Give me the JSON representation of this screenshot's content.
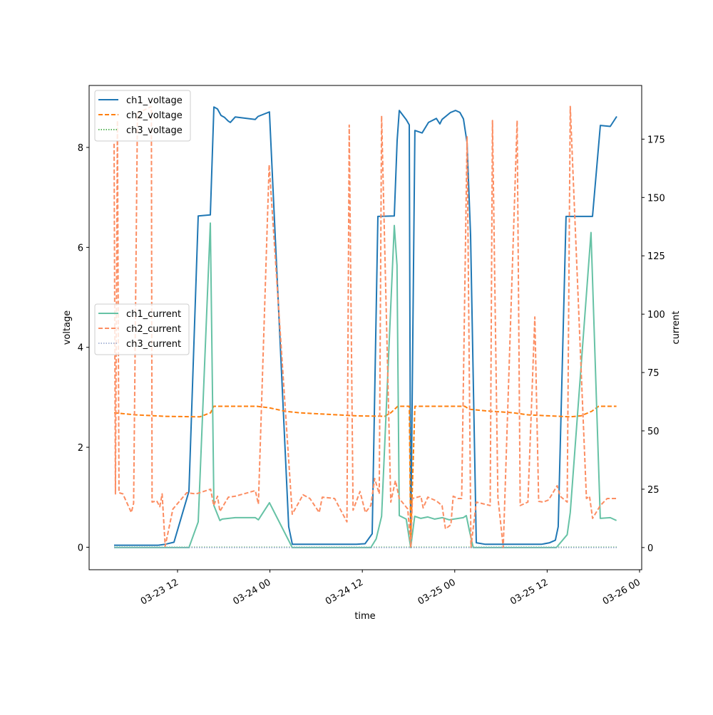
{
  "chart_data": {
    "type": "line",
    "xlabel": "time",
    "ylabel_left": "voltage",
    "ylabel_right": "current",
    "x_units": "hours since 03-23 00:00",
    "xlim": [
      0.52,
      72.28
    ],
    "ylim_left": [
      -0.45,
      9.24
    ],
    "ylim_right": [
      -9.5,
      198
    ],
    "x_ticks": [
      {
        "v": 12,
        "label": "03-23 12"
      },
      {
        "v": 24,
        "label": "03-24 00"
      },
      {
        "v": 36,
        "label": "03-24 12"
      },
      {
        "v": 48,
        "label": "03-25 00"
      },
      {
        "v": 60,
        "label": "03-25 12"
      },
      {
        "v": 72,
        "label": "03-26 00"
      }
    ],
    "y_ticks_left": [
      0,
      2,
      4,
      6,
      8
    ],
    "y_ticks_right": [
      0,
      25,
      50,
      75,
      100,
      125,
      150,
      175
    ],
    "legend_voltage": {
      "placement": "upper-left",
      "entries": [
        "ch1_voltage",
        "ch2_voltage",
        "ch3_voltage"
      ]
    },
    "legend_current": {
      "placement": "center-left",
      "entries": [
        "ch1_current",
        "ch2_current",
        "ch3_current"
      ]
    },
    "series": [
      {
        "name": "ch1_voltage",
        "axis": "left",
        "color": "#1f77b4",
        "dash": "",
        "width": 2,
        "x": [
          3.76,
          9.5,
          10.43,
          11.54,
          13.48,
          14.69,
          16.26,
          16.72,
          17.19,
          17.65,
          18.11,
          18.57,
          18.85,
          19.5,
          22.09,
          22.46,
          23.94,
          26.44,
          26.91,
          35.24,
          36.35,
          37.28,
          38.02,
          40.15,
          40.52,
          40.8,
          41.72,
          42.09,
          42.28,
          42.83,
          43.76,
          44.59,
          45.61,
          46.07,
          46.35,
          47.46,
          48.11,
          48.67,
          49.13,
          49.59,
          50.06,
          50.8,
          51.91,
          59.31,
          60.33,
          61.07,
          61.44,
          62.46,
          65.89,
          66.91,
          68.2,
          69.04
        ],
        "y": [
          0.04,
          0.04,
          0.06,
          0.1,
          1.12,
          6.63,
          6.65,
          8.81,
          8.77,
          8.64,
          8.6,
          8.53,
          8.5,
          8.61,
          8.56,
          8.62,
          8.71,
          0.41,
          0.06,
          0.06,
          0.07,
          0.27,
          6.62,
          6.63,
          8.14,
          8.74,
          8.55,
          8.45,
          0.01,
          8.34,
          8.29,
          8.5,
          8.58,
          8.47,
          8.56,
          8.7,
          8.74,
          8.7,
          8.57,
          8.1,
          6.24,
          0.09,
          0.06,
          0.06,
          0.09,
          0.14,
          0.41,
          6.62,
          6.62,
          8.44,
          8.42,
          8.62
        ]
      },
      {
        "name": "ch2_voltage",
        "axis": "left",
        "color": "#ff7f0e",
        "dash": "6,3",
        "width": 2,
        "x": [
          3.76,
          6.5,
          10.4,
          14.9,
          16.3,
          16.7,
          22.3,
          23.9,
          26,
          27.8,
          31.5,
          35.2,
          38.9,
          39.7,
          40.6,
          42.1,
          42.28,
          42.83,
          46.35,
          49.3,
          49.9,
          51.9,
          55.6,
          57.5,
          60.2,
          63,
          64.4,
          65.8,
          66.7,
          69
        ],
        "y": [
          2.69,
          2.65,
          2.62,
          2.61,
          2.69,
          2.82,
          2.82,
          2.79,
          2.72,
          2.69,
          2.66,
          2.63,
          2.62,
          2.69,
          2.82,
          2.82,
          0.13,
          2.82,
          2.82,
          2.82,
          2.76,
          2.73,
          2.69,
          2.65,
          2.63,
          2.61,
          2.63,
          2.72,
          2.82,
          2.82
        ]
      },
      {
        "name": "ch3_voltage",
        "axis": "left",
        "color": "#2ca02c",
        "dash": "1.5,2",
        "width": 1.5,
        "x": [
          3.76,
          69.04
        ],
        "y": [
          0,
          0
        ]
      },
      {
        "name": "ch1_current",
        "axis": "right",
        "color": "#66c2a5",
        "dash": "",
        "width": 2,
        "x": [
          3.76,
          13.48,
          14.69,
          16.26,
          16.72,
          17.5,
          17.8,
          19.5,
          22.1,
          22.5,
          23.94,
          26.9,
          37.1,
          37.8,
          38.5,
          40.15,
          40.5,
          40.8,
          41.7,
          42.28,
          42.8,
          43.6,
          44.5,
          45.4,
          46.4,
          47.3,
          49.1,
          49.5,
          49.9,
          50.4,
          61.2,
          62.6,
          63,
          65.7,
          66.9,
          68.2,
          69
        ],
        "y": [
          0,
          0,
          11,
          139,
          18,
          11.6,
          12.2,
          12.8,
          12.8,
          11.9,
          19.2,
          0,
          0,
          3.7,
          13.4,
          138,
          121,
          13.7,
          12.2,
          0,
          13.4,
          12.5,
          13.1,
          12.2,
          12.8,
          11.9,
          12.8,
          13.7,
          7.3,
          0,
          0,
          5.5,
          15,
          135,
          12.5,
          12.8,
          11.6
        ]
      },
      {
        "name": "ch2_current",
        "axis": "right",
        "color": "#fc8d62",
        "dash": "6,3",
        "width": 2,
        "x": [
          3.76,
          3.94,
          4.2,
          4.4,
          4.9,
          6,
          6.3,
          6.8,
          8.6,
          8.7,
          9.3,
          9.7,
          10,
          10.4,
          11.4,
          13.2,
          14.4,
          16.3,
          16.7,
          17.2,
          17.5,
          18.6,
          19.5,
          22.1,
          22.5,
          23.9,
          26.9,
          28.3,
          29.2,
          30.4,
          30.8,
          32.4,
          34,
          34.3,
          34.8,
          35.7,
          36.4,
          37.1,
          37.6,
          38.2,
          38.5,
          39.7,
          40.3,
          40.8,
          41.9,
          42.3,
          42.5,
          43.6,
          43.9,
          44.5,
          45.6,
          46.35,
          46.8,
          47.5,
          47.8,
          48.4,
          48.9,
          49.6,
          50.1,
          50.8,
          52.6,
          52.9,
          53.6,
          54.3,
          56.1,
          56.5,
          57.5,
          58.4,
          58.9,
          59.5,
          60.2,
          61.3,
          61.7,
          62.6,
          63,
          65.1,
          65.5,
          65.9,
          66.9,
          67.8,
          69
        ],
        "y": [
          173,
          23,
          183,
          23.5,
          23,
          15,
          19,
          186,
          189,
          19.5,
          20,
          17.5,
          23,
          0.6,
          16.5,
          23.5,
          23,
          25,
          18,
          22,
          15.5,
          21.6,
          22,
          24.4,
          18.6,
          164,
          14.3,
          22.6,
          21,
          15,
          21.6,
          21,
          11,
          181,
          16,
          24,
          15,
          18,
          29.6,
          23,
          185,
          19.5,
          28.7,
          21,
          16.5,
          0,
          21,
          22,
          17,
          21.6,
          20,
          18,
          8,
          9.8,
          22,
          21,
          21,
          176,
          0,
          19.5,
          18,
          183,
          21.6,
          0,
          183,
          18,
          19.5,
          98.8,
          19.8,
          19.5,
          20.4,
          26.5,
          22,
          19.5,
          189,
          21,
          22,
          12.5,
          18,
          21,
          21
        ]
      },
      {
        "name": "ch3_current",
        "axis": "right",
        "color": "#8da0cb",
        "dash": "1.5,2",
        "width": 1.5,
        "x": [
          3.76,
          69.04
        ],
        "y": [
          0,
          0
        ]
      }
    ]
  }
}
